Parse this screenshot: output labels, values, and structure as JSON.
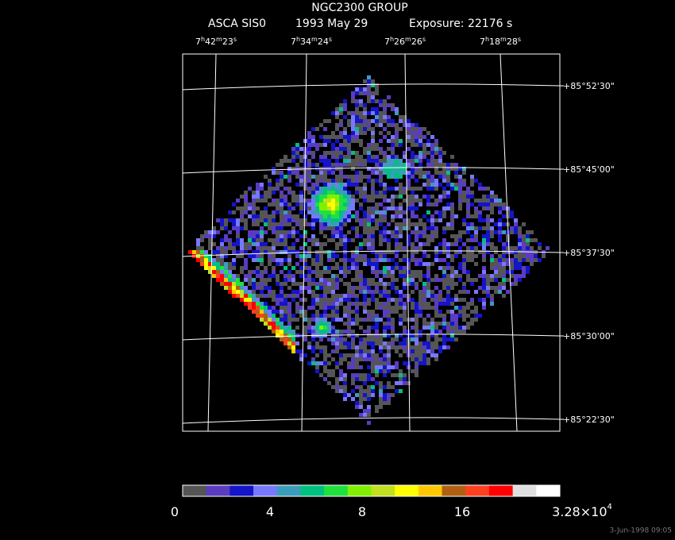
{
  "header": {
    "title": "NGC2300 GROUP",
    "instrument": "ASCA SIS0",
    "date": "1993 May 29",
    "exposure": "Exposure: 22176 s"
  },
  "axes": {
    "ra_labels": [
      [
        "7",
        "h",
        "42",
        "m",
        "23",
        "s"
      ],
      [
        "7",
        "h",
        "34",
        "m",
        "24",
        "s"
      ],
      [
        "7",
        "h",
        "26",
        "m",
        "26",
        "s"
      ],
      [
        "7",
        "h",
        "18",
        "m",
        "28",
        "s"
      ]
    ],
    "dec_labels": [
      "+85°52'30\"",
      "+85°45'00\"",
      "+85°37'30\"",
      "+85°30'00\"",
      "+85°22'30\""
    ]
  },
  "colorbar": {
    "colors": [
      "#555555",
      "#5a3cc0",
      "#1414c8",
      "#7878ff",
      "#3c9cbc",
      "#00c080",
      "#20e040",
      "#80f000",
      "#c0e020",
      "#ffff00",
      "#ffc800",
      "#b06010",
      "#ff4020",
      "#ff0000",
      "#e0e0e0",
      "#ffffff"
    ],
    "labels": [
      [
        "0"
      ],
      [
        "4"
      ],
      [
        "8"
      ],
      [
        "16"
      ],
      [
        "3.28×10",
        "4"
      ]
    ]
  },
  "timestamp": "3-Jun-1998 09:05"
}
